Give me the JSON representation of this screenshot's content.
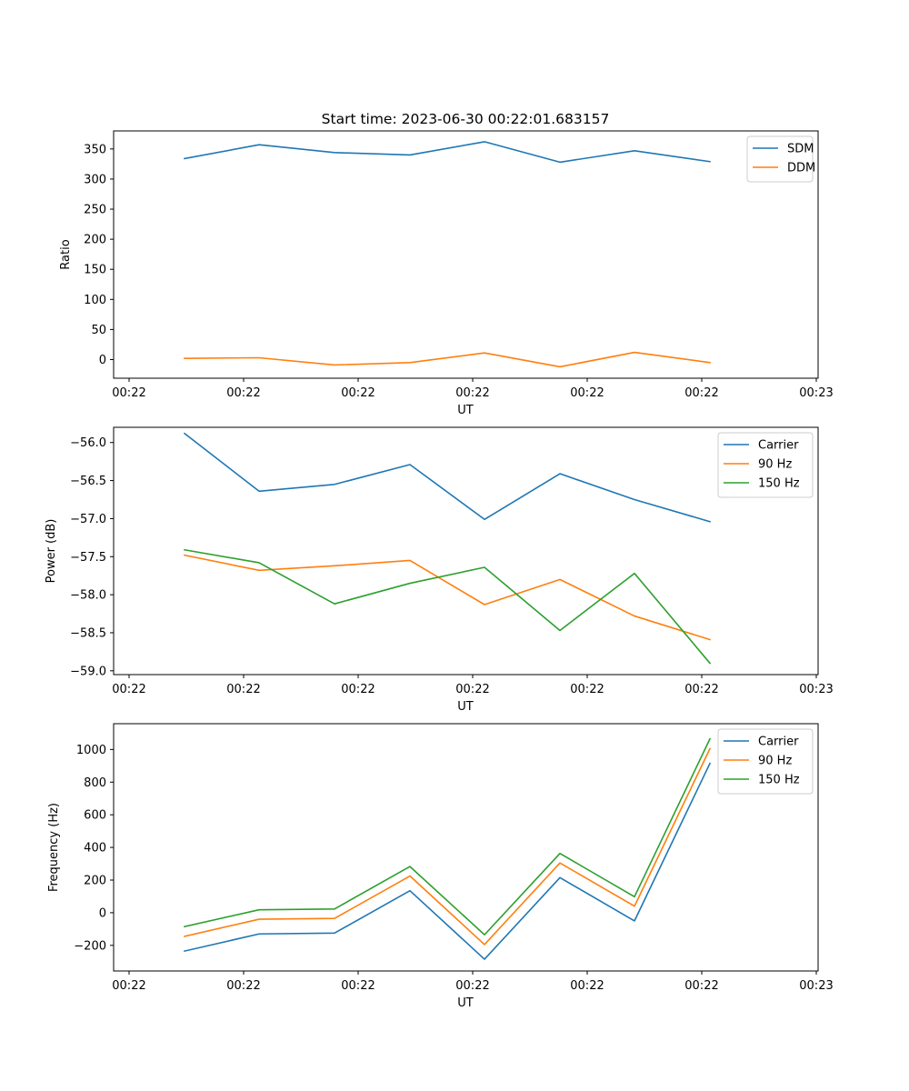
{
  "figure": {
    "title": "Start time: 2023-06-30 00:22:01.683157"
  },
  "chart_data": [
    {
      "type": "line",
      "xlabel": "UT",
      "ylabel": "Ratio",
      "x_tick_labels": [
        "00:22",
        "00:22",
        "00:22",
        "00:22",
        "00:22",
        "00:22",
        "00:22",
        "00:23"
      ],
      "yticks": [
        0,
        50,
        100,
        150,
        200,
        250,
        300,
        350
      ],
      "ylim": [
        -31,
        380
      ],
      "legend_position": "upper-right",
      "series": [
        {
          "name": "SDM",
          "color": "#1f77b4",
          "values": [
            334,
            357,
            344,
            340,
            362,
            328,
            347,
            329
          ]
        },
        {
          "name": "DDM",
          "color": "#ff7f0e",
          "values": [
            2,
            3,
            -9,
            -5,
            11,
            -12,
            12,
            -5
          ]
        }
      ]
    },
    {
      "type": "line",
      "xlabel": "UT",
      "ylabel": "Power (dB)",
      "x_tick_labels": [
        "00:22",
        "00:22",
        "00:22",
        "00:22",
        "00:22",
        "00:22",
        "00:22",
        "00:23"
      ],
      "yticks": [
        -59.0,
        -58.5,
        -58.0,
        -57.5,
        -57.0,
        -56.5,
        -56.0
      ],
      "ytick_labels": [
        "−59.0",
        "−58.5",
        "−58.0",
        "−57.5",
        "−57.0",
        "−56.5",
        "−56.0"
      ],
      "ylim": [
        -59.05,
        -55.8
      ],
      "legend_position": "upper-right",
      "series": [
        {
          "name": "Carrier",
          "color": "#1f77b4",
          "values": [
            -55.88,
            -56.64,
            -56.55,
            -56.29,
            -57.01,
            -56.41,
            -56.75,
            -57.04
          ]
        },
        {
          "name": "90 Hz",
          "color": "#ff7f0e",
          "values": [
            -57.48,
            -57.68,
            -57.62,
            -57.55,
            -58.13,
            -57.8,
            -58.28,
            -58.59
          ]
        },
        {
          "name": "150 Hz",
          "color": "#2ca02c",
          "values": [
            -57.41,
            -57.58,
            -58.12,
            -57.85,
            -57.64,
            -58.47,
            -57.72,
            -58.9
          ]
        }
      ]
    },
    {
      "type": "line",
      "xlabel": "UT",
      "ylabel": "Frequency (Hz)",
      "x_tick_labels": [
        "00:22",
        "00:22",
        "00:22",
        "00:22",
        "00:22",
        "00:22",
        "00:22",
        "00:23"
      ],
      "yticks": [
        -200,
        0,
        200,
        400,
        600,
        800,
        1000
      ],
      "ytick_labels": [
        "−200",
        "0",
        "200",
        "400",
        "600",
        "800",
        "1000"
      ],
      "ylim": [
        -357,
        1158
      ],
      "legend_position": "upper-right",
      "series": [
        {
          "name": "Carrier",
          "color": "#1f77b4",
          "values": [
            -235,
            -130,
            -125,
            135,
            -285,
            215,
            -50,
            915
          ]
        },
        {
          "name": "90 Hz",
          "color": "#ff7f0e",
          "values": [
            -145,
            -40,
            -35,
            225,
            -195,
            305,
            40,
            1005
          ]
        },
        {
          "name": "150 Hz",
          "color": "#2ca02c",
          "values": [
            -85,
            18,
            23,
            283,
            -135,
            363,
            98,
            1065
          ]
        }
      ]
    }
  ]
}
